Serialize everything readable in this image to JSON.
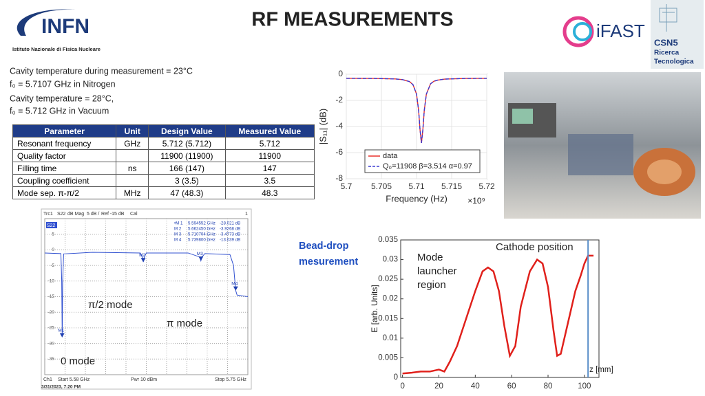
{
  "header": {
    "title": "RF MEASUREMENTS",
    "infn": "INFN",
    "infn_caption": "Istituto Nazionale di Fisica Nucleare",
    "ifast": "iFAST",
    "csn5": [
      "CSN5",
      "Ricerca",
      "Tecnologica"
    ]
  },
  "notes": [
    "Cavity temperature during measurement = 23°C",
    "f₀ = 5.7107 GHz in Nitrogen",
    "Cavity temperature = 28°C,",
    "f₀ = 5.712 GHz in Vacuum"
  ],
  "table": {
    "columns": [
      "Parameter",
      "Unit",
      "Design Value",
      "Measured Value"
    ],
    "rows": [
      [
        "Resonant frequency",
        "GHz",
        "5.712 (5.712)",
        "5.712"
      ],
      [
        "Quality factor",
        "",
        "11900 (11900)",
        "11900"
      ],
      [
        "Filling time",
        "ns",
        "166 (147)",
        "147"
      ],
      [
        "Coupling coefficient",
        "",
        "3 (3.5)",
        "3.5"
      ],
      [
        "Mode sep. π-π/2",
        "MHz",
        "47 (48.3)",
        "48.3"
      ]
    ]
  },
  "bead_label": [
    "Bead-drop",
    "mesurement"
  ],
  "chart_data": [
    {
      "type": "line",
      "xlabel": "Frequency (Hz)",
      "x_multiplier": "×10⁹",
      "ylabel": "|S₁₁| (dB)",
      "x": [
        5.7,
        5.704,
        5.707,
        5.708,
        5.709,
        5.7095,
        5.71,
        5.7103,
        5.7105,
        5.7107,
        5.7109,
        5.7111,
        5.7114,
        5.712,
        5.7125,
        5.713,
        5.714,
        5.717,
        5.72
      ],
      "series": [
        {
          "name": "data",
          "color": "#e8302a",
          "dashed": false,
          "values": [
            -0.31,
            -0.32,
            -0.36,
            -0.41,
            -0.56,
            -0.8,
            -1.52,
            -2.78,
            -4.27,
            -5.26,
            -4.27,
            -2.78,
            -1.52,
            -0.73,
            -0.53,
            -0.45,
            -0.37,
            -0.32,
            -0.31
          ]
        },
        {
          "name": "Q₀=11908 β=3.514 α=0.97",
          "color": "#3a3ad0",
          "dashed": true,
          "values": [
            -0.31,
            -0.32,
            -0.36,
            -0.41,
            -0.56,
            -0.8,
            -1.52,
            -2.78,
            -4.27,
            -5.26,
            -4.27,
            -2.78,
            -1.52,
            -0.73,
            -0.53,
            -0.45,
            -0.37,
            -0.32,
            -0.31
          ]
        }
      ],
      "xlim": [
        5.7,
        5.72
      ],
      "xticks": [
        5.7,
        5.705,
        5.71,
        5.715,
        5.72
      ],
      "ylim": [
        -8,
        0
      ],
      "yticks": [
        0,
        -2,
        -4,
        -6,
        -8
      ],
      "grid": true,
      "legend": "lower right"
    },
    {
      "type": "line",
      "header": [
        "Trc1",
        "S22",
        "dB Mag",
        "5 dB /",
        "Ref -15 dB",
        "Cal",
        "1"
      ],
      "footer": [
        "Ch1",
        "Start 5.58 GHz",
        "Pwr 10 dBm",
        "Stop 5.75 GHz"
      ],
      "timestamp": "3/31/2023, 7:20 PM",
      "trace_label": "S22",
      "x": [
        5.58,
        5.5935,
        5.5942,
        5.5946,
        5.595,
        5.5958,
        5.62,
        5.66,
        5.6618,
        5.6625,
        5.6632,
        5.665,
        5.7,
        5.7098,
        5.7107,
        5.7116,
        5.714,
        5.735,
        5.738,
        5.7398,
        5.741,
        5.75
      ],
      "series": [
        {
          "name": "S22",
          "color": "#2f4fd0",
          "values": [
            -1,
            -1.2,
            -10,
            -28,
            -10,
            -1.3,
            -0.8,
            -1,
            -2.5,
            -3.9,
            -2.5,
            -1,
            -1,
            -2.3,
            -3.5,
            -2.3,
            -1.2,
            -1.5,
            -5,
            -13,
            -14.5,
            -15
          ]
        }
      ],
      "xlim": [
        5.58,
        5.75
      ],
      "ylim": [
        -40,
        10
      ],
      "yticks": [
        5,
        0,
        -5,
        -10,
        -15,
        -20,
        -25,
        -30,
        -35
      ],
      "grid": true,
      "markers": [
        {
          "name": "M1",
          "list_name": "•M 1",
          "x": 5.594552,
          "x_label": "5.594552 GHz",
          "value": -28.021,
          "value_label": "-28.021 dB"
        },
        {
          "name": "M2",
          "list_name": "M 2",
          "x": 5.66245,
          "x_label": "5.662450 GHz",
          "value": -3.9268,
          "value_label": "-3.9268 dB"
        },
        {
          "name": "M3",
          "list_name": "M 3",
          "x": 5.710704,
          "x_label": "5.710704 GHz",
          "value": -3.4773,
          "value_label": "-3.4773 dB"
        },
        {
          "name": "M4",
          "list_name": "M 4",
          "x": 5.7398,
          "x_label": "5.739800 GHz",
          "value": -13.039,
          "value_label": "-13.039 dB"
        }
      ],
      "annotations": [
        "π/2 mode",
        "π mode",
        "0 mode"
      ]
    },
    {
      "type": "line",
      "xlabel": "z [mm]",
      "ylabel": "E [arb. Units]",
      "x": [
        0,
        5,
        10,
        15,
        20,
        23,
        26,
        30,
        35,
        40,
        44,
        47,
        50,
        53,
        56,
        59,
        62,
        65,
        70,
        74,
        77,
        80,
        83,
        85,
        87,
        90,
        95,
        98,
        100,
        102,
        105
      ],
      "series": [
        {
          "name": "E",
          "color": "#e0201b",
          "values": [
            0.001,
            0.0012,
            0.0015,
            0.0015,
            0.002,
            0.0015,
            0.004,
            0.008,
            0.015,
            0.022,
            0.027,
            0.028,
            0.027,
            0.022,
            0.013,
            0.0055,
            0.008,
            0.018,
            0.027,
            0.03,
            0.029,
            0.023,
            0.012,
            0.0055,
            0.006,
            0.012,
            0.022,
            0.026,
            0.029,
            0.031,
            0.031
          ]
        }
      ],
      "xlim": [
        -1,
        108
      ],
      "xticks": [
        0,
        20,
        40,
        60,
        80,
        100
      ],
      "ylim": [
        0,
        0.035
      ],
      "yticks": [
        0,
        0.005,
        0.01,
        0.015,
        0.02,
        0.025,
        0.03,
        0.035
      ],
      "grid": false,
      "cathode_z": 102,
      "cathode_color": "#5b8fc9",
      "annotations": [
        [
          "Mode",
          "launcher",
          "region"
        ],
        "Cathode position"
      ]
    }
  ]
}
